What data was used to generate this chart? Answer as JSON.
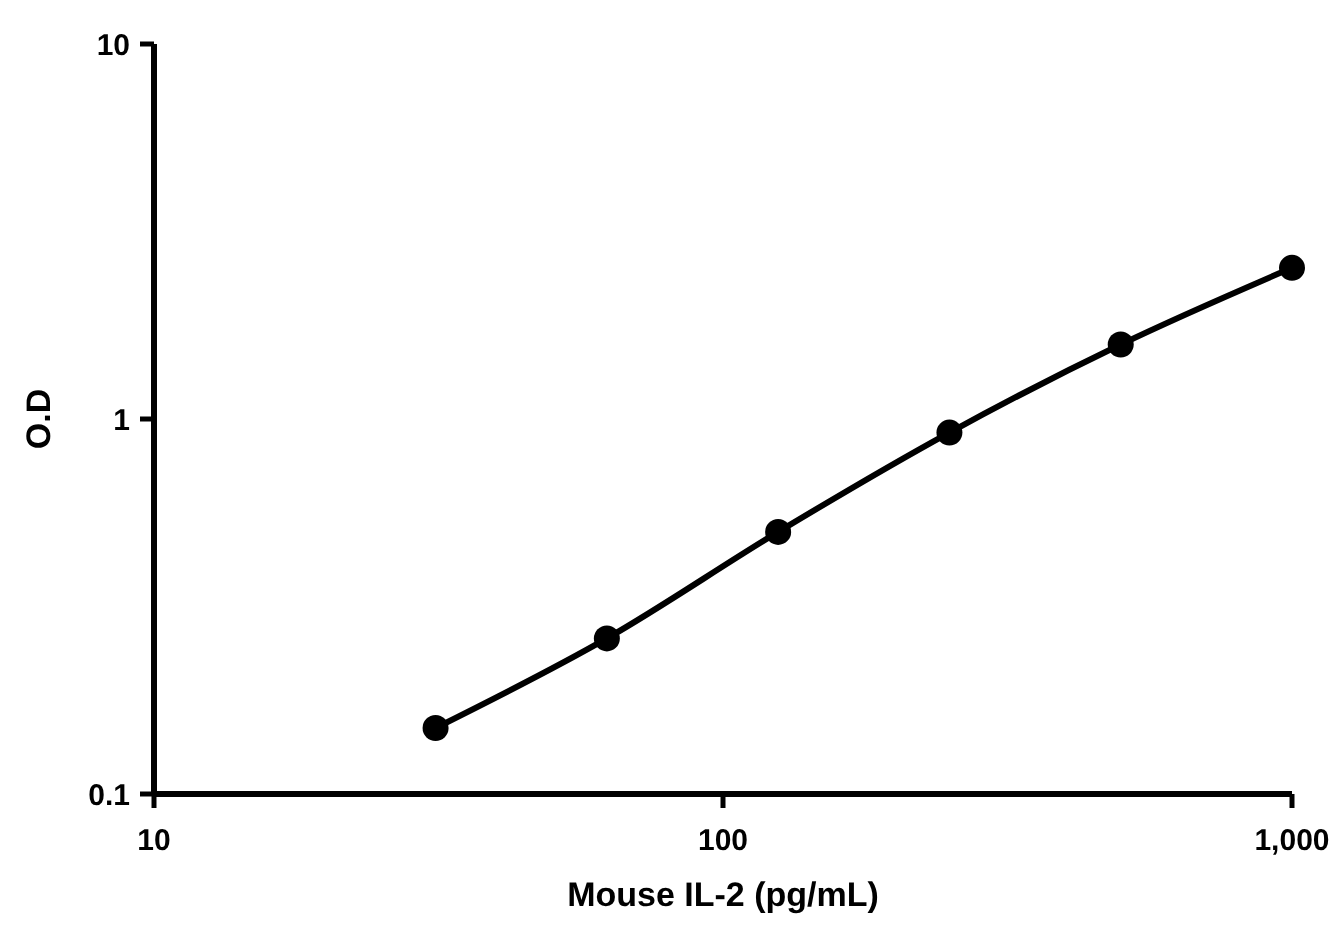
{
  "chart_data": {
    "type": "line",
    "xlabel": "Mouse IL-2 (pg/mL)",
    "ylabel": "O.D",
    "log": "xy",
    "x": [
      31.25,
      62.5,
      125,
      250,
      500,
      1000
    ],
    "series": [
      {
        "color": "#000000",
        "values": [
          0.15,
          0.26,
          0.5,
          0.92,
          1.58,
          2.53
        ]
      }
    ],
    "xlim": [
      10,
      1000
    ],
    "xticks": [
      10,
      100,
      {
        "value": 1000,
        "label": "1,000"
      }
    ],
    "ylim": [
      0.1,
      10
    ],
    "yticks": [
      0.1,
      1,
      10
    ],
    "marker": "circle",
    "line_style": "solid"
  }
}
